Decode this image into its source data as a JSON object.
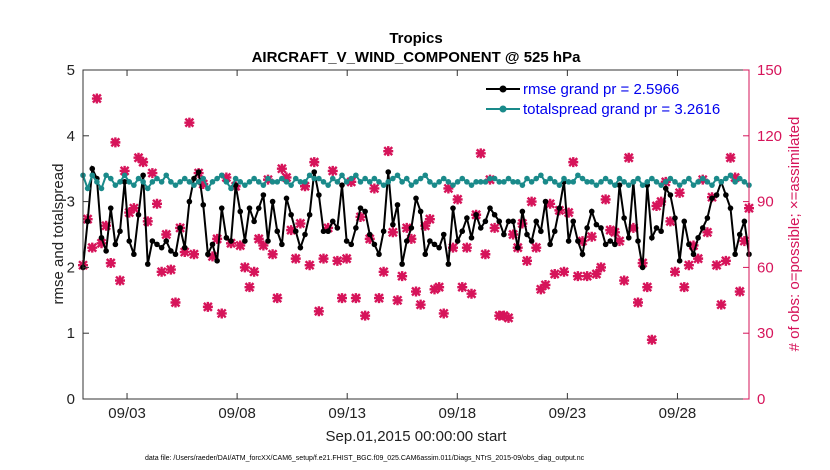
{
  "chart_data": {
    "type": "line",
    "title": "Tropics",
    "subtitle": "AIRCRAFT_V_WIND_COMPONENT @ 525 hPa",
    "xlabel": "Sep.01,2015 00:00:00 start",
    "ylabel_left": "rmse and totalspread",
    "ylabel_right": "# of obs: o=possible; ×=assimilated",
    "ylim_left": [
      0,
      5
    ],
    "ylim_right": [
      0,
      150
    ],
    "yticks_left": [
      "0",
      "1",
      "2",
      "3",
      "4",
      "5"
    ],
    "yticks_right": [
      "0",
      "30",
      "60",
      "90",
      "120",
      "150"
    ],
    "xlim_days": [
      1.0,
      31.25
    ],
    "xticks": [
      {
        "day": 3,
        "label": "09/03"
      },
      {
        "day": 8,
        "label": "09/08"
      },
      {
        "day": 13,
        "label": "09/13"
      },
      {
        "day": 18,
        "label": "09/18"
      },
      {
        "day": 23,
        "label": "09/23"
      },
      {
        "day": 28,
        "label": "09/28"
      }
    ],
    "legend": {
      "position": "top-right",
      "entries": [
        "rmse grand pr = 2.5966",
        "totalspread grand pr = 3.2616"
      ]
    },
    "series": [
      {
        "name": "rmse grand pr = 2.5966",
        "color": "#000000",
        "axis": "left",
        "values": [
          2.0,
          2.7,
          3.5,
          3.35,
          2.45,
          2.25,
          2.9,
          2.35,
          2.55,
          3.3,
          2.4,
          2.2,
          2.8,
          3.4,
          2.05,
          2.4,
          2.35,
          2.3,
          2.4,
          2.25,
          2.2,
          2.6,
          2.3,
          3.0,
          3.35,
          3.45,
          2.95,
          2.2,
          2.35,
          2.1,
          2.9,
          2.45,
          2.4,
          3.25,
          2.85,
          2.4,
          2.9,
          2.7,
          2.9,
          3.1,
          2.4,
          3.0,
          2.55,
          2.35,
          3.05,
          2.8,
          2.55,
          2.3,
          2.5,
          2.8,
          3.45,
          3.1,
          2.55,
          2.55,
          2.7,
          2.6,
          3.25,
          2.4,
          2.35,
          2.6,
          2.9,
          2.85,
          2.5,
          2.35,
          2.2,
          2.55,
          3.45,
          2.65,
          2.95,
          2.05,
          2.4,
          2.6,
          3.05,
          2.85,
          2.2,
          2.4,
          2.35,
          2.3,
          2.5,
          2.05,
          2.9,
          2.4,
          2.55,
          2.75,
          2.45,
          2.8,
          2.6,
          2.7,
          2.9,
          2.8,
          2.7,
          2.5,
          2.7,
          2.7,
          2.3,
          2.85,
          2.5,
          2.4,
          2.7,
          2.55,
          3.0,
          2.35,
          2.55,
          2.9,
          3.3,
          2.4,
          2.7,
          2.4,
          2.2,
          2.6,
          2.85,
          2.65,
          2.6,
          2.35,
          2.4,
          2.35,
          3.25,
          2.75,
          2.45,
          3.3,
          2.4,
          2.0,
          3.25,
          2.45,
          2.6,
          2.55,
          3.2,
          3.1,
          2.75,
          2.1,
          2.7,
          2.35,
          2.2,
          2.45,
          2.6,
          2.75,
          3.05,
          3.1,
          3.3,
          3.1,
          2.9,
          2.2,
          2.5,
          2.7,
          2.2
        ]
      },
      {
        "name": "totalspread grand pr = 3.2616",
        "color": "#1a8a8a",
        "axis": "left",
        "values": [
          3.4,
          3.2,
          3.4,
          3.3,
          3.2,
          3.4,
          3.35,
          3.25,
          3.3,
          3.4,
          3.3,
          3.25,
          3.35,
          3.3,
          3.2,
          3.3,
          3.35,
          3.3,
          3.4,
          3.3,
          3.25,
          3.3,
          3.35,
          3.3,
          3.25,
          3.3,
          3.35,
          3.2,
          3.3,
          3.35,
          3.4,
          3.3,
          3.2,
          3.35,
          3.3,
          3.25,
          3.3,
          3.35,
          3.3,
          3.25,
          3.35,
          3.3,
          3.3,
          3.35,
          3.3,
          3.25,
          3.35,
          3.3,
          3.3,
          3.4,
          3.35,
          3.35,
          3.3,
          3.25,
          3.35,
          3.3,
          3.4,
          3.3,
          3.35,
          3.4,
          3.3,
          3.35,
          3.3,
          3.35,
          3.3,
          3.25,
          3.3,
          3.35,
          3.4,
          3.3,
          3.35,
          3.25,
          3.3,
          3.35,
          3.4,
          3.3,
          3.25,
          3.3,
          3.35,
          3.3,
          3.25,
          3.3,
          3.35,
          3.3,
          3.25,
          3.3,
          3.3,
          3.3,
          3.35,
          3.35,
          3.3,
          3.3,
          3.35,
          3.3,
          3.3,
          3.25,
          3.35,
          3.3,
          3.35,
          3.4,
          3.3,
          3.35,
          3.3,
          3.25,
          3.35,
          3.3,
          3.3,
          3.4,
          3.35,
          3.3,
          3.3,
          3.25,
          3.3,
          3.35,
          3.3,
          3.25,
          3.35,
          3.3,
          3.25,
          3.3,
          3.35,
          3.25,
          3.3,
          3.35,
          3.3,
          3.25,
          3.3,
          3.35,
          3.3,
          3.25,
          3.3,
          3.35,
          3.25,
          3.3,
          3.35,
          3.3,
          3.25,
          3.35,
          3.3,
          3.35,
          3.4,
          3.3,
          3.35,
          3.3,
          3.25
        ]
      },
      {
        "name": "# of obs assimilated",
        "color": "#d6145a",
        "axis": "right",
        "marker": "x",
        "values": [
          61,
          82,
          69,
          137,
          71,
          79,
          62,
          117,
          54,
          104,
          85,
          87,
          110,
          108,
          81,
          103,
          89,
          58,
          75,
          59,
          44,
          78,
          67,
          126,
          66,
          103,
          98,
          42,
          65,
          73,
          39,
          101,
          71,
          97,
          70,
          60,
          51,
          58,
          73,
          70,
          100,
          66,
          46,
          105,
          101,
          77,
          64,
          80,
          97,
          61,
          108,
          40,
          64,
          78,
          104,
          63,
          46,
          64,
          99,
          46,
          83,
          38,
          73,
          96,
          46,
          58,
          113,
          76,
          45,
          56,
          78,
          73,
          49,
          43,
          79,
          82,
          50,
          51,
          39,
          96,
          69,
          91,
          51,
          69,
          48,
          84,
          112,
          66,
          100,
          78,
          38,
          38,
          37,
          75,
          69,
          80,
          63,
          90,
          69,
          50,
          52,
          89,
          57,
          86,
          58,
          85,
          108,
          56,
          72,
          56,
          74,
          57,
          60,
          91,
          77,
          76,
          72,
          54,
          110,
          78,
          44,
          62,
          51,
          27,
          88,
          90,
          99,
          81,
          58,
          94,
          51,
          61,
          70,
          64,
          100,
          76,
          92,
          61,
          43,
          63,
          110,
          101,
          49,
          72,
          87
        ]
      }
    ]
  },
  "footnote": "data file: /Users/raeder/DAI/ATM_forcXX/CAM6_setup/f.e21.FHIST_BGC.f09_025.CAM6assim.011/Diags_NTrS_2015-09/obs_diag_output.nc"
}
